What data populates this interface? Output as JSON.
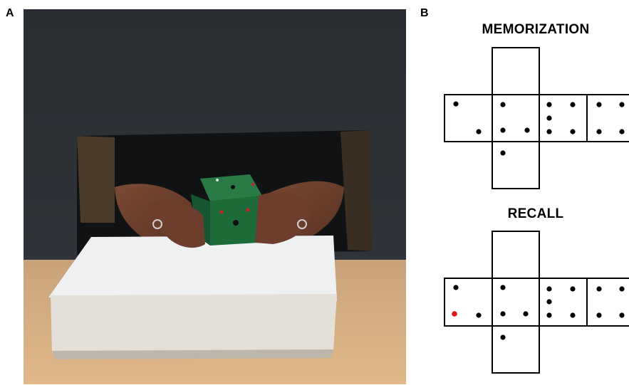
{
  "panel_a": {
    "letter": "A"
  },
  "panel_b": {
    "letter": "B",
    "memorization": {
      "title": "MEMORIZATION"
    },
    "recall": {
      "title": "RECALL"
    }
  },
  "colors": {
    "dot": "#000000",
    "highlight_dot": "#e0141c",
    "cube": "#1e6b3a",
    "table": "#d9ad7c",
    "backdrop": "#2b2f33"
  }
}
